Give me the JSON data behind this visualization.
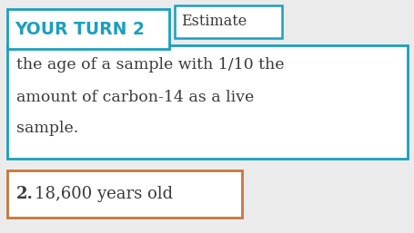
{
  "page_bg": "#ebebeb",
  "your_turn_text": "YOUR TURN 2",
  "your_turn_color": "#1b9fbe",
  "estimate_text": "Estimate",
  "body_text_line1": "the age of a sample with 1/10 the",
  "body_text_line2": "amount of carbon-14 as a live",
  "body_text_line3": "sample.",
  "answer_label": "2.",
  "answer_text": "18,600 years old",
  "teal_box_color": "#1b9fbe",
  "orange_box_color": "#c8763a",
  "body_text_color": "#3a3a3a",
  "bg_white": "#ffffff",
  "fig_w": 4.55,
  "fig_h": 2.57,
  "dpi": 100
}
